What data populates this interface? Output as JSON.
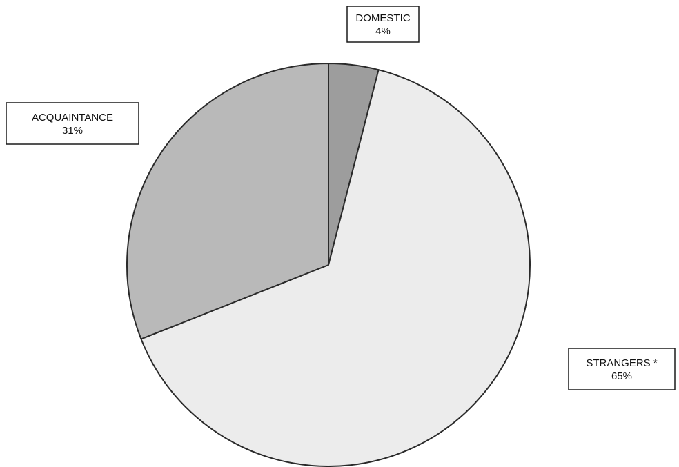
{
  "chart_data": {
    "type": "pie",
    "slices": [
      {
        "name": "DOMESTIC",
        "value": 4,
        "percent_label": "4%",
        "color": "#9d9d9d"
      },
      {
        "name": "STRANGERS *",
        "value": 65,
        "percent_label": "65%",
        "color": "#ececec"
      },
      {
        "name": "ACQUAINTANCE",
        "value": 31,
        "percent_label": "31%",
        "color": "#b9b9b9"
      }
    ],
    "start_angle": "12 o'clock",
    "direction": "clockwise",
    "legend": "none",
    "labels": "boxed callouts outside pie"
  }
}
